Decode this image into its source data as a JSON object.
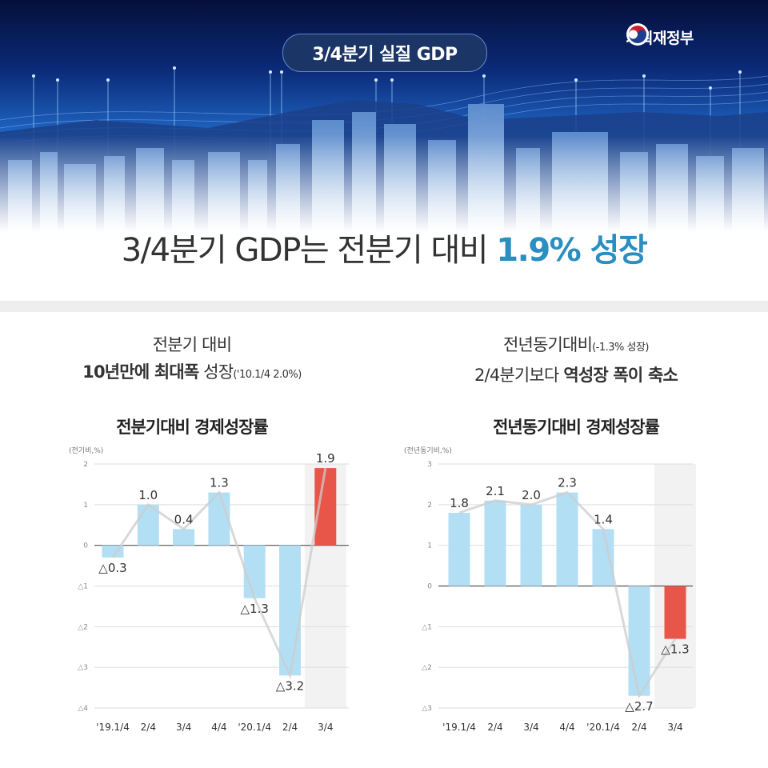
{
  "header": {
    "badge": "3/4분기 실질 GDP",
    "ministry": "기획재정부",
    "headline_prefix": "3/4분기 GDP는 전분기 대비 ",
    "headline_accent": "1.9% 성장"
  },
  "left": {
    "sub_line1": "전분기 대비",
    "sub_line2_bold": "10년만에 최대폭",
    "sub_line2_rest": " 성장",
    "sub_line2_small": "('10.1/4 2.0%)",
    "chart_title": "전분기대비 경제성장률",
    "unit": "(전기비,%)"
  },
  "right": {
    "sub_line1": "전년동기대비",
    "sub_line1_small": "(-1.3% 성장)",
    "sub_line2_rest": "2/4분기보다 ",
    "sub_line2_bold": "역성장 폭이 축소",
    "chart_title": "전년동기대비 경제성장률",
    "unit": "(전년동기비,%)"
  },
  "colors": {
    "bar": "#b3dff5",
    "highlight_top": "#e8564a",
    "highlight_bottom": "#d9452e",
    "line": "#cccccc",
    "accent": "#2a8fc0"
  },
  "chart_data": [
    {
      "type": "bar",
      "title": "전분기대비 경제성장률",
      "ylabel": "(전기비,%)",
      "categories": [
        "'19.1/4",
        "2/4",
        "3/4",
        "4/4",
        "'20.1/4",
        "2/4",
        "3/4"
      ],
      "values": [
        -0.3,
        1.0,
        0.4,
        1.3,
        -1.3,
        -3.2,
        1.9
      ],
      "data_labels": [
        "△0.3",
        "1.0",
        "0.4",
        "1.3",
        "△1.3",
        "△3.2",
        "1.9"
      ],
      "ylim": [
        -4,
        2
      ],
      "yticks": [
        2,
        1,
        0,
        -1,
        -2,
        -3,
        -4
      ],
      "ytick_labels": [
        "2",
        "1",
        "0",
        "△1",
        "△2",
        "△3",
        "△4"
      ],
      "highlight_index": 6,
      "overlay_line": true,
      "grid": true
    },
    {
      "type": "bar",
      "title": "전년동기대비 경제성장률",
      "ylabel": "(전년동기비,%)",
      "categories": [
        "'19.1/4",
        "2/4",
        "3/4",
        "4/4",
        "'20.1/4",
        "2/4",
        "3/4"
      ],
      "values": [
        1.8,
        2.1,
        2.0,
        2.3,
        1.4,
        -2.7,
        -1.3
      ],
      "data_labels": [
        "1.8",
        "2.1",
        "2.0",
        "2.3",
        "1.4",
        "△2.7",
        "△1.3"
      ],
      "ylim": [
        -3,
        3
      ],
      "yticks": [
        3,
        2,
        1,
        0,
        -1,
        -2,
        -3
      ],
      "ytick_labels": [
        "3",
        "2",
        "1",
        "0",
        "△1",
        "△2",
        "△3"
      ],
      "highlight_index": 6,
      "overlay_line": true,
      "grid": true
    }
  ]
}
